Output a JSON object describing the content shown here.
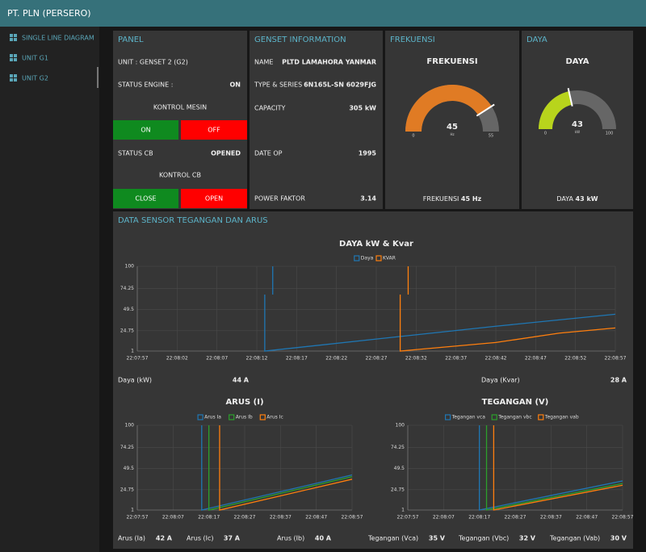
{
  "header": {
    "title": "PT. PLN (PERSERO)"
  },
  "sidebar": {
    "items": [
      "SINGLE LINE DIAGRAM",
      "UNIT G1",
      "UNIT G2"
    ]
  },
  "panel": {
    "title": "PANEL",
    "unit": "UNIT : GENSET 2 (G2)",
    "status_engine_label": "STATUS ENGINE :",
    "status_engine": "ON",
    "kontrol_mesin": "KONTROL MESIN",
    "buttons_mesin": [
      "ON",
      "OFF"
    ],
    "status_cb_label": "STATUS CB",
    "status_cb": "OPENED",
    "kontrol_cb": "KONTROL CB",
    "buttons_cb": [
      "CLOSE",
      "OPEN"
    ]
  },
  "genset": {
    "title": "GENSET INFORMATION",
    "rows": [
      [
        "NAME",
        "PLTD LAMAHORA YANMAR"
      ],
      [
        "TYPE & SERIES :",
        "6N165L-SN 6029FJG"
      ],
      [
        "CAPACITY",
        "305 kW"
      ],
      [
        "DATE OP",
        "1995"
      ],
      [
        "POWER FAKTOR",
        "3.14"
      ]
    ]
  },
  "gauges": [
    {
      "type": "gauge",
      "card_title": "FREKUENSI",
      "title": "FREKUENSI",
      "value": 45,
      "min": 0,
      "max": 55,
      "unit": "Hz",
      "color": "#e07b24",
      "footer_label": "FREKUENSI",
      "footer_value": "45 Hz"
    },
    {
      "type": "gauge",
      "card_title": "DAYA",
      "title": "DAYA",
      "value": 43,
      "min": 0,
      "max": 100,
      "unit": "kW",
      "color": "#b8d41c",
      "footer_label": "DAYA",
      "footer_value": "43 kW"
    }
  ],
  "section_title": "DATA SENSOR TEGANGAN DAN ARUS",
  "chart_data": [
    {
      "type": "line",
      "title": "DAYA kW & Kvar",
      "grid": true,
      "xlim": [
        "22:07:57",
        "22:08:57"
      ],
      "xticks": [
        "22:07:57",
        "22:08:02",
        "22:08:07",
        "22:08:12",
        "22:08:17",
        "22:08:22",
        "22:08:27",
        "22:08:32",
        "22:08:37",
        "22:08:42",
        "22:08:47",
        "22:08:52",
        "22:08:57"
      ],
      "ylim": [
        1,
        100
      ],
      "yticks": [
        1,
        24.75,
        49.5,
        74.25,
        100
      ],
      "series": [
        {
          "name": "Daya",
          "color": "#1f77b4",
          "x": [
            "22:08:14",
            "22:08:14",
            "22:08:14",
            "22:08:13",
            "22:08:13",
            "22:08:27",
            "22:08:42",
            "22:08:57"
          ],
          "values": [
            100,
            67,
            null,
            67,
            1,
            15,
            30,
            44
          ]
        },
        {
          "name": "KVAR",
          "color": "#ff7f0e",
          "x": [
            "22:08:31",
            "22:08:31",
            "22:08:31",
            "22:08:30",
            "22:08:30",
            "22:08:42",
            "22:08:50",
            "22:08:57"
          ],
          "values": [
            100,
            67,
            null,
            67,
            1,
            11,
            22,
            28
          ]
        }
      ]
    },
    {
      "type": "line",
      "title": "ARUS (I)",
      "grid": true,
      "xlim": [
        "22:07:57",
        "22:08:57"
      ],
      "xticks": [
        "22:07:57",
        "22:08:07",
        "22:08:17",
        "22:08:27",
        "22:08:37",
        "22:08:47",
        "22:08:57"
      ],
      "ylim": [
        1,
        100
      ],
      "yticks": [
        1,
        24.75,
        49.5,
        74.25,
        100
      ],
      "series": [
        {
          "name": "Arus Ia",
          "color": "#1f77b4",
          "x": [
            "22:08:15",
            "22:08:15",
            "22:08:57"
          ],
          "values": [
            100,
            1,
            42
          ]
        },
        {
          "name": "Arus Ib",
          "color": "#2ca02c",
          "x": [
            "22:08:17",
            "22:08:17",
            "22:08:57"
          ],
          "values": [
            100,
            1,
            40
          ]
        },
        {
          "name": "Arus Ic",
          "color": "#ff7f0e",
          "x": [
            "22:08:20",
            "22:08:20",
            "22:08:57"
          ],
          "values": [
            100,
            1,
            37
          ]
        }
      ]
    },
    {
      "type": "line",
      "title": "TEGANGAN (V)",
      "grid": true,
      "xlim": [
        "22:07:57",
        "22:08:57"
      ],
      "xticks": [
        "22:07:57",
        "22:08:07",
        "22:08:17",
        "22:08:27",
        "22:08:37",
        "22:08:47",
        "22:08:57"
      ],
      "ylim": [
        1,
        100
      ],
      "yticks": [
        1,
        24.75,
        49.5,
        74.25,
        100
      ],
      "series": [
        {
          "name": "Tegangan vca",
          "color": "#1f77b4",
          "x": [
            "22:08:17",
            "22:08:17",
            "22:08:57"
          ],
          "values": [
            100,
            1,
            35
          ]
        },
        {
          "name": "Tegangan vbc",
          "color": "#2ca02c",
          "x": [
            "22:08:19",
            "22:08:19",
            "22:08:57"
          ],
          "values": [
            100,
            1,
            32
          ]
        },
        {
          "name": "Tegangan vab",
          "color": "#ff7f0e",
          "x": [
            "22:08:21",
            "22:08:21",
            "22:08:57"
          ],
          "values": [
            100,
            1,
            30
          ]
        }
      ]
    }
  ],
  "readings": [
    {
      "label": "Daya (kW)",
      "value": "44 A"
    },
    {
      "label": "Daya (Kvar)",
      "value": "28 A"
    },
    {
      "label": "Arus (Ia)",
      "value": "42 A"
    },
    {
      "label": "Arus (Ic)",
      "value": "37 A"
    },
    {
      "label": "Arus (Ib)",
      "value": "40 A"
    },
    {
      "label": "Tegangan (Vca)",
      "value": "35 V"
    },
    {
      "label": "Tegangan (Vbc)",
      "value": "32 V"
    },
    {
      "label": "Tegangan (Vab)",
      "value": "30 V"
    }
  ]
}
